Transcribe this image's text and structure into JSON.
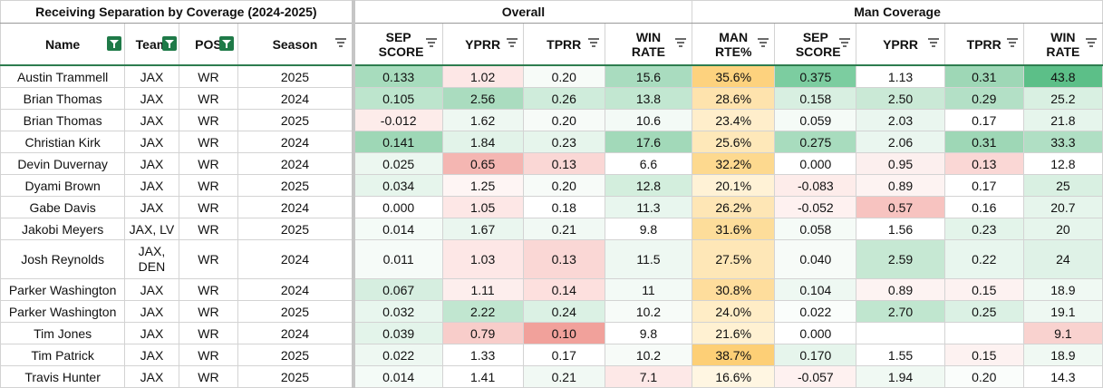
{
  "title": "Receiving Separation by Coverage (2024-2025)",
  "groups": {
    "overall": "Overall",
    "man": "Man Coverage"
  },
  "columns": {
    "name": "Name",
    "team": "Team",
    "pos": "POS",
    "season": "Season",
    "sep_score": "SEP SCORE",
    "yprr": "YPRR",
    "tprr": "TPRR",
    "win_rate": "WIN RATE",
    "man_rte": "MAN RTE%",
    "man_sep_score": "SEP SCORE",
    "man_yprr": "YPRR",
    "man_tprr": "TPRR",
    "man_win_rate": "WIN RATE"
  },
  "icons": {
    "filter": "filter-icon",
    "menu": "sort-menu-icon"
  },
  "colors": {
    "accent_green": "#1f7a48",
    "positive": "#57bb8a",
    "negative": "#e67c73",
    "neutral_yellow": "#ffd666"
  },
  "rows": [
    {
      "name": "Austin Trammell",
      "team": "JAX",
      "pos": "WR",
      "season": "2025",
      "sep_score": "0.133",
      "yprr": "1.02",
      "tprr": "0.20",
      "win_rate": "15.6",
      "man_rte": "35.6%",
      "man_sep_score": "0.375",
      "man_yprr": "1.13",
      "man_tprr": "0.31",
      "man_win_rate": "43.8"
    },
    {
      "name": "Brian Thomas",
      "team": "JAX",
      "pos": "WR",
      "season": "2024",
      "sep_score": "0.105",
      "yprr": "2.56",
      "tprr": "0.26",
      "win_rate": "13.8",
      "man_rte": "28.6%",
      "man_sep_score": "0.158",
      "man_yprr": "2.50",
      "man_tprr": "0.29",
      "man_win_rate": "25.2"
    },
    {
      "name": "Brian Thomas",
      "team": "JAX",
      "pos": "WR",
      "season": "2025",
      "sep_score": "-0.012",
      "yprr": "1.62",
      "tprr": "0.20",
      "win_rate": "10.6",
      "man_rte": "23.4%",
      "man_sep_score": "0.059",
      "man_yprr": "2.03",
      "man_tprr": "0.17",
      "man_win_rate": "21.8"
    },
    {
      "name": "Christian Kirk",
      "team": "JAX",
      "pos": "WR",
      "season": "2024",
      "sep_score": "0.141",
      "yprr": "1.84",
      "tprr": "0.23",
      "win_rate": "17.6",
      "man_rte": "25.6%",
      "man_sep_score": "0.275",
      "man_yprr": "2.06",
      "man_tprr": "0.31",
      "man_win_rate": "33.3"
    },
    {
      "name": "Devin Duvernay",
      "team": "JAX",
      "pos": "WR",
      "season": "2024",
      "sep_score": "0.025",
      "yprr": "0.65",
      "tprr": "0.13",
      "win_rate": "6.6",
      "man_rte": "32.2%",
      "man_sep_score": "0.000",
      "man_yprr": "0.95",
      "man_tprr": "0.13",
      "man_win_rate": "12.8"
    },
    {
      "name": "Dyami Brown",
      "team": "JAX",
      "pos": "WR",
      "season": "2025",
      "sep_score": "0.034",
      "yprr": "1.25",
      "tprr": "0.20",
      "win_rate": "12.8",
      "man_rte": "20.1%",
      "man_sep_score": "-0.083",
      "man_yprr": "0.89",
      "man_tprr": "0.17",
      "man_win_rate": "25"
    },
    {
      "name": "Gabe Davis",
      "team": "JAX",
      "pos": "WR",
      "season": "2024",
      "sep_score": "0.000",
      "yprr": "1.05",
      "tprr": "0.18",
      "win_rate": "11.3",
      "man_rte": "26.2%",
      "man_sep_score": "-0.052",
      "man_yprr": "0.57",
      "man_tprr": "0.16",
      "man_win_rate": "20.7"
    },
    {
      "name": "Jakobi Meyers",
      "team": "JAX, LV",
      "pos": "WR",
      "season": "2025",
      "sep_score": "0.014",
      "yprr": "1.67",
      "tprr": "0.21",
      "win_rate": "9.8",
      "man_rte": "31.6%",
      "man_sep_score": "0.058",
      "man_yprr": "1.56",
      "man_tprr": "0.23",
      "man_win_rate": "20"
    },
    {
      "name": "Josh Reynolds",
      "team": "JAX, DEN",
      "pos": "WR",
      "season": "2024",
      "sep_score": "0.011",
      "yprr": "1.03",
      "tprr": "0.13",
      "win_rate": "11.5",
      "man_rte": "27.5%",
      "man_sep_score": "0.040",
      "man_yprr": "2.59",
      "man_tprr": "0.22",
      "man_win_rate": "24"
    },
    {
      "name": "Parker Washington",
      "team": "JAX",
      "pos": "WR",
      "season": "2024",
      "sep_score": "0.067",
      "yprr": "1.11",
      "tprr": "0.14",
      "win_rate": "11",
      "man_rte": "30.8%",
      "man_sep_score": "0.104",
      "man_yprr": "0.89",
      "man_tprr": "0.15",
      "man_win_rate": "18.9"
    },
    {
      "name": "Parker Washington",
      "team": "JAX",
      "pos": "WR",
      "season": "2025",
      "sep_score": "0.032",
      "yprr": "2.22",
      "tprr": "0.24",
      "win_rate": "10.2",
      "man_rte": "24.0%",
      "man_sep_score": "0.022",
      "man_yprr": "2.70",
      "man_tprr": "0.25",
      "man_win_rate": "19.1"
    },
    {
      "name": "Tim Jones",
      "team": "JAX",
      "pos": "WR",
      "season": "2024",
      "sep_score": "0.039",
      "yprr": "0.79",
      "tprr": "0.10",
      "win_rate": "9.8",
      "man_rte": "21.6%",
      "man_sep_score": "0.000",
      "man_yprr": "",
      "man_tprr": "",
      "man_win_rate": "9.1"
    },
    {
      "name": "Tim Patrick",
      "team": "JAX",
      "pos": "WR",
      "season": "2025",
      "sep_score": "0.022",
      "yprr": "1.33",
      "tprr": "0.17",
      "win_rate": "10.2",
      "man_rte": "38.7%",
      "man_sep_score": "0.170",
      "man_yprr": "1.55",
      "man_tprr": "0.15",
      "man_win_rate": "18.9"
    },
    {
      "name": "Travis Hunter",
      "team": "JAX",
      "pos": "WR",
      "season": "2025",
      "sep_score": "0.014",
      "yprr": "1.41",
      "tprr": "0.21",
      "win_rate": "7.1",
      "man_rte": "16.6%",
      "man_sep_score": "-0.057",
      "man_yprr": "1.94",
      "man_tprr": "0.20",
      "man_win_rate": "14.3"
    }
  ],
  "cell_colors": [
    {
      "sep_score": "#a7dcbd",
      "yprr": "#fde7e6",
      "tprr": "#f7fbf8",
      "win_rate": "#a9dcbf",
      "man_rte": "#fdd27e",
      "man_sep_score": "#7ccda0",
      "man_yprr": "#ffffff",
      "man_tprr": "#9ed7b6",
      "man_win_rate": "#5cbf88"
    },
    {
      "sep_score": "#bde5cd",
      "yprr": "#aadcbf",
      "tprr": "#cfecdb",
      "win_rate": "#c2e7d1",
      "man_rte": "#fee3ad",
      "man_sep_score": "#d8efe1",
      "man_yprr": "#cae9d6",
      "man_tprr": "#b3e0c6",
      "man_win_rate": "#d9f0e2"
    },
    {
      "sep_score": "#fdecea",
      "yprr": "#eef8f2",
      "tprr": "#f7fbf8",
      "win_rate": "#f3faf6",
      "man_rte": "#ffeecb",
      "man_sep_score": "#f5fbf7",
      "man_yprr": "#eaf6ef",
      "man_tprr": "#ffffff",
      "man_win_rate": "#e6f5ec"
    },
    {
      "sep_score": "#9ed7b6",
      "yprr": "#e2f3e9",
      "tprr": "#e6f5ec",
      "win_rate": "#a2d9b9",
      "man_rte": "#fee8b9",
      "man_sep_score": "#a8dcbe",
      "man_yprr": "#eaf6ef",
      "man_tprr": "#9ed7b6",
      "man_win_rate": "#b0dfc4"
    },
    {
      "sep_score": "#ecf7f0",
      "yprr": "#f4b6b2",
      "tprr": "#fad7d5",
      "win_rate": "#ffffff",
      "man_rte": "#fdd98f",
      "man_sep_score": "#ffffff",
      "man_yprr": "#fcefee",
      "man_tprr": "#fad7d5",
      "man_win_rate": "#ffffff"
    },
    {
      "sep_score": "#e6f5ec",
      "yprr": "#fef5f4",
      "tprr": "#f7fbf8",
      "win_rate": "#d3eedd",
      "man_rte": "#fff2d6",
      "man_sep_score": "#fdecea",
      "man_yprr": "#fdf3f2",
      "man_tprr": "#ffffff",
      "man_win_rate": "#d9f0e2"
    },
    {
      "sep_score": "#ffffff",
      "yprr": "#fde7e6",
      "tprr": "#ffffff",
      "win_rate": "#e8f6ee",
      "man_rte": "#fee6b5",
      "man_sep_score": "#fef1f0",
      "man_yprr": "#f7c3c0",
      "man_tprr": "#ffffff",
      "man_win_rate": "#e6f5ec"
    },
    {
      "sep_score": "#f4fbf7",
      "yprr": "#eaf6ef",
      "tprr": "#f1f9f4",
      "win_rate": "#ffffff",
      "man_rte": "#fddd9a",
      "man_sep_score": "#f5fbf7",
      "man_yprr": "#ffffff",
      "man_tprr": "#e3f4ea",
      "man_win_rate": "#e6f5ec"
    },
    {
      "sep_score": "#f6fbf8",
      "yprr": "#fde7e6",
      "tprr": "#fad7d5",
      "win_rate": "#eef8f2",
      "man_rte": "#fee7b7",
      "man_sep_score": "#f7fbf8",
      "man_yprr": "#c6e8d3",
      "man_tprr": "#e8f6ee",
      "man_win_rate": "#dff2e7"
    },
    {
      "sep_score": "#d6eee0",
      "yprr": "#fdeeed",
      "tprr": "#fde0de",
      "win_rate": "#f3faf6",
      "man_rte": "#fedd9c",
      "man_sep_score": "#eef8f2",
      "man_yprr": "#fdf3f2",
      "man_tprr": "#fdf2f1",
      "man_win_rate": "#f0f9f3"
    },
    {
      "sep_score": "#e8f6ee",
      "yprr": "#c1e6d0",
      "tprr": "#dbf1e4",
      "win_rate": "#f7fbf8",
      "man_rte": "#ffedc6",
      "man_sep_score": "#fafdfb",
      "man_yprr": "#c0e6cf",
      "man_tprr": "#dbf1e4",
      "man_win_rate": "#eef8f2"
    },
    {
      "sep_score": "#e3f4ea",
      "yprr": "#f8cdca",
      "tprr": "#f1a19b",
      "win_rate": "#ffffff",
      "man_rte": "#fff1d2",
      "man_sep_score": "#ffffff",
      "man_yprr": "#ffffff",
      "man_tprr": "#ffffff",
      "man_win_rate": "#f9d2cf"
    },
    {
      "sep_score": "#eef8f2",
      "yprr": "#ffffff",
      "tprr": "#ffffff",
      "win_rate": "#f7fbf8",
      "man_rte": "#fdcf76",
      "man_sep_score": "#e6f5ec",
      "man_yprr": "#ffffff",
      "man_tprr": "#fdf2f1",
      "man_win_rate": "#f0f9f3"
    },
    {
      "sep_score": "#f4fbf7",
      "yprr": "#ffffff",
      "tprr": "#f1f9f4",
      "win_rate": "#fde8e7",
      "man_rte": "#fff6e2",
      "man_sep_score": "#fef1f0",
      "man_yprr": "#f0f9f3",
      "man_tprr": "#fafdfb",
      "man_win_rate": "#ffffff"
    }
  ]
}
